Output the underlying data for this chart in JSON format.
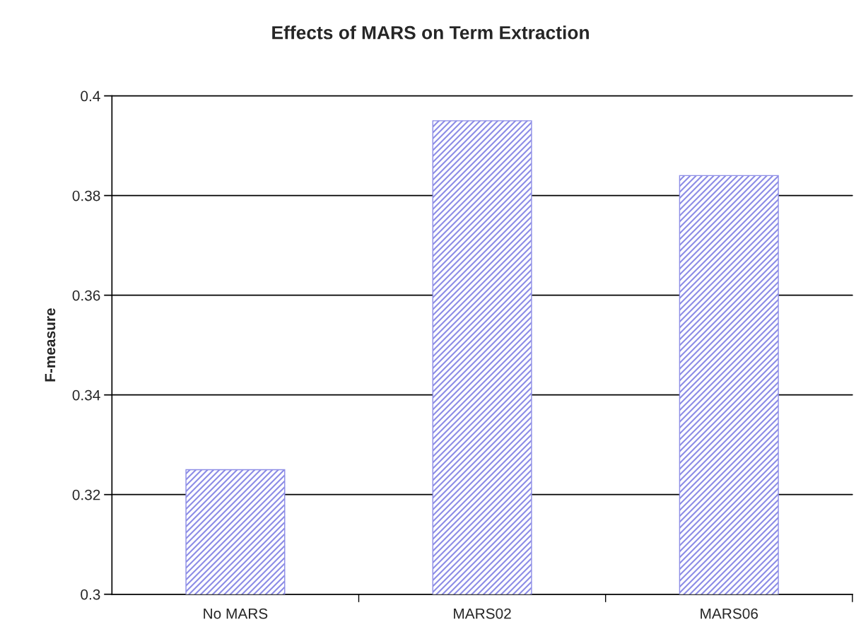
{
  "chart_data": {
    "type": "bar",
    "title": "Effects of MARS on Term Extraction",
    "ylabel": "F-measure",
    "categories": [
      "No MARS",
      "MARS02",
      "MARS06"
    ],
    "values": [
      0.325,
      0.395,
      0.384
    ],
    "color": "#8c8ce6",
    "ylim": [
      0.3,
      0.4
    ],
    "yticks": [
      0.3,
      0.32,
      0.34,
      0.36,
      0.38,
      0.4
    ],
    "grid": "y"
  }
}
